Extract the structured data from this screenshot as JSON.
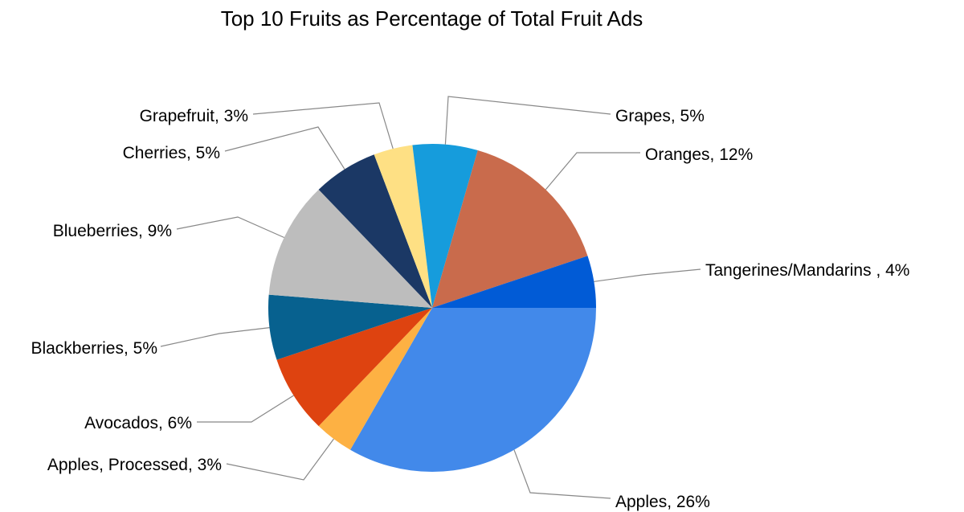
{
  "chart_data": {
    "type": "pie",
    "title": "Top 10 Fruits as Percentage of Total Fruit Ads",
    "slices": [
      {
        "name": "Apples",
        "value": 26,
        "label": "Apples, 26%",
        "color": "#4289EA"
      },
      {
        "name": "Apples, Processed",
        "value": 3,
        "label": "Apples, Processed, 3%",
        "color": "#FDB143"
      },
      {
        "name": "Avocados",
        "value": 6,
        "label": "Avocados, 6%",
        "color": "#DE4310"
      },
      {
        "name": "Blackberries",
        "value": 5,
        "label": "Blackberries, 5%",
        "color": "#07618F"
      },
      {
        "name": "Blueberries",
        "value": 9,
        "label": "Blueberries, 9%",
        "color": "#BDBDBD"
      },
      {
        "name": "Cherries",
        "value": 5,
        "label": "Cherries, 5%",
        "color": "#1B3865"
      },
      {
        "name": "Grapefruit",
        "value": 3,
        "label": "Grapefruit, 3%",
        "color": "#FEE084"
      },
      {
        "name": "Grapes",
        "value": 5,
        "label": "Grapes, 5%",
        "color": "#169CDC"
      },
      {
        "name": "Oranges",
        "value": 12,
        "label": "Oranges, 12%",
        "color": "#C96B4C"
      },
      {
        "name": "Tangerines/Mandarins",
        "value": 4,
        "label": "Tangerines/Mandarins , 4%",
        "color": "#015BD6"
      }
    ],
    "start": "3 o'clock",
    "direction": "clockwise",
    "legend": "none"
  }
}
